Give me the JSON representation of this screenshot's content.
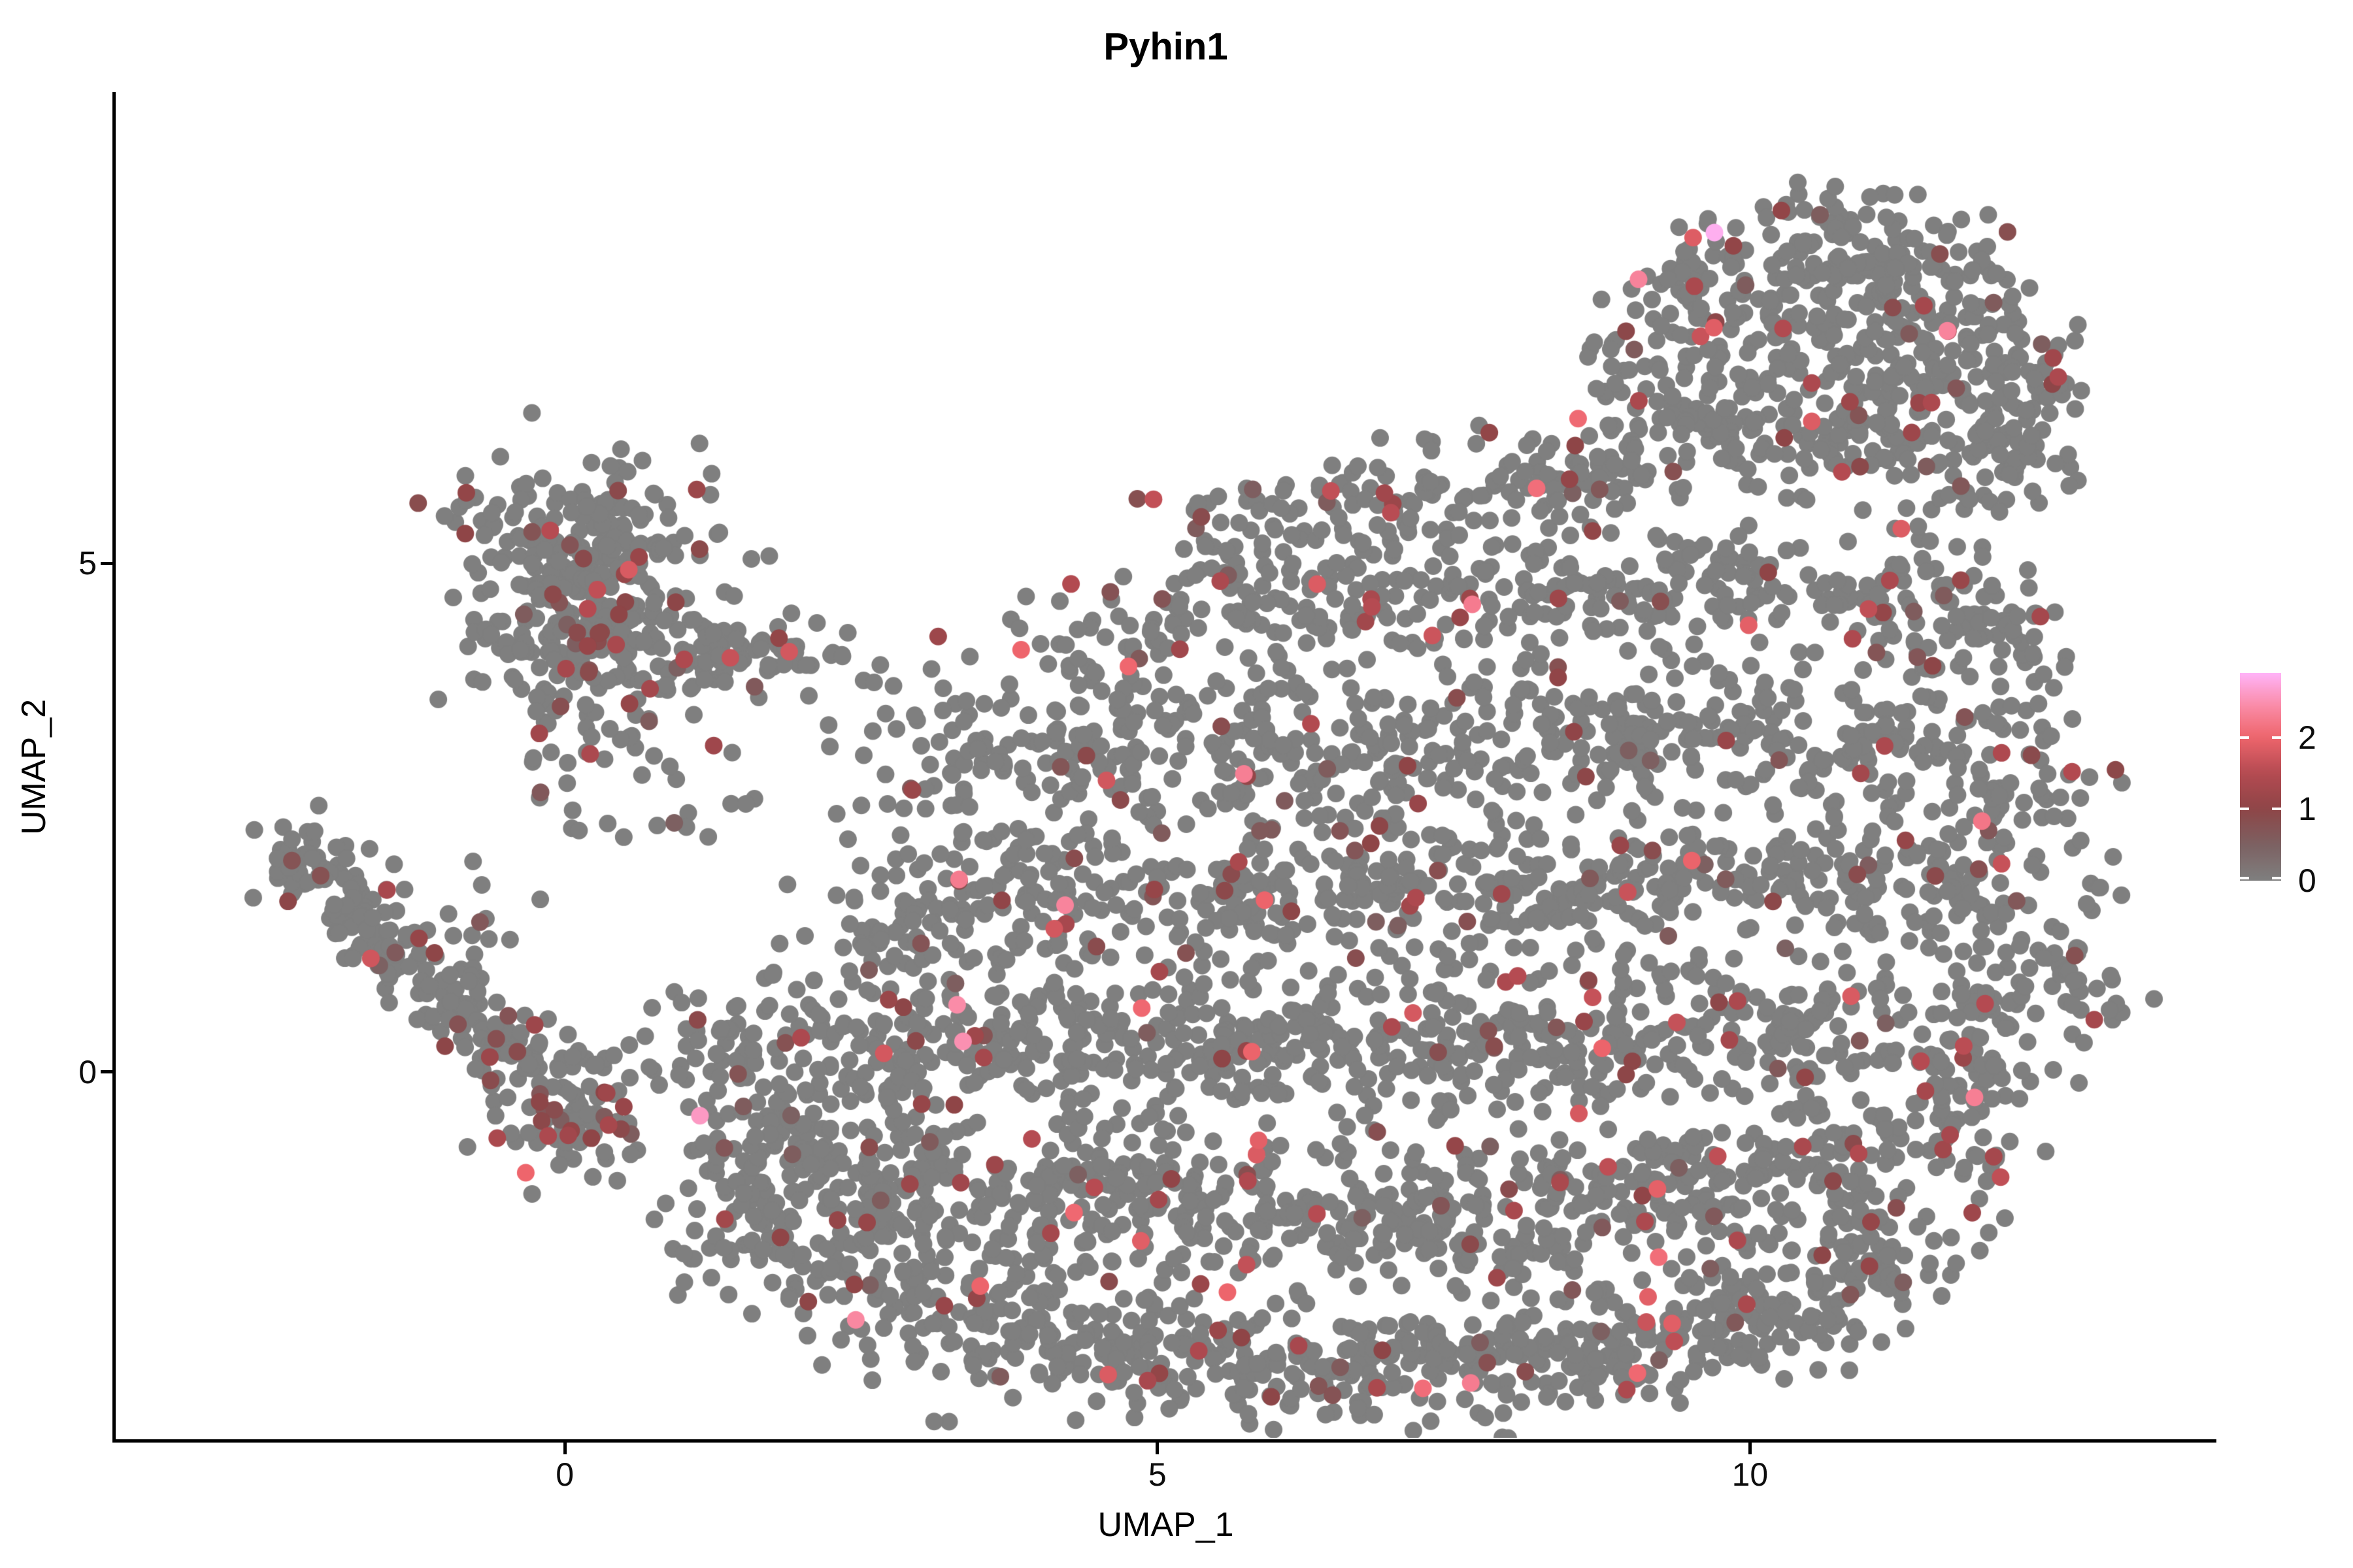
{
  "chart_data": {
    "type": "scatter",
    "title": "Pyhin1",
    "xlabel": "UMAP_1",
    "ylabel": "UMAP_2",
    "xlim": [
      -3.79,
      13.93
    ],
    "ylim": [
      -3.61,
      9.63
    ],
    "x_ticks": [
      0,
      5,
      10
    ],
    "y_ticks": [
      0,
      5
    ],
    "grid": false,
    "legend": {
      "position": "right",
      "ticks": [
        0,
        1,
        2
      ],
      "vmax": 2.9,
      "tick_color": "#ffffff"
    },
    "colors": {
      "expression_0": "#7F7F7F",
      "expression_1": "#8E4547",
      "expression_2": "#EE656C",
      "expression_max": "#FFB3F8",
      "axis": "#000000",
      "background": "#FFFFFF"
    },
    "color_stops": [
      [
        0.0,
        "#7F7F7F"
      ],
      [
        0.5,
        "#7C6162"
      ],
      [
        1.0,
        "#8E4547"
      ],
      [
        1.5,
        "#B44A51"
      ],
      [
        2.0,
        "#EE656C"
      ],
      [
        2.45,
        "#FA8CA8"
      ],
      [
        2.9,
        "#FFB3F8"
      ]
    ],
    "point_radius_px": 13.5,
    "seed": 7,
    "approx_cell_count": 5800,
    "expression_probs": {
      "low": [
        0.055,
        0.5,
        0.9
      ],
      "mid": [
        0.012,
        1.4,
        0.6
      ],
      "high": [
        0.002,
        2.0,
        0.4
      ]
    },
    "clusters": {
      "format": [
        "cx",
        "cy",
        "rx",
        "ry",
        "n",
        "red_boost"
      ],
      "blobs": [
        [
          0.2,
          5.1,
          1.05,
          0.8,
          230,
          1.6
        ],
        [
          0.35,
          4.2,
          1.15,
          0.55,
          130,
          1.6
        ],
        [
          1.7,
          4.05,
          0.8,
          0.4,
          45,
          1.3
        ],
        [
          0.3,
          3.3,
          0.95,
          0.5,
          40,
          1.3
        ],
        [
          0.6,
          2.6,
          1.0,
          0.4,
          14,
          1
        ],
        [
          -2.1,
          2.05,
          0.4,
          0.35,
          48,
          1.4
        ],
        [
          -1.7,
          1.55,
          0.35,
          0.35,
          40,
          1.4
        ],
        [
          -1.35,
          1.1,
          0.33,
          0.33,
          38,
          1.4
        ],
        [
          -0.95,
          0.65,
          0.33,
          0.33,
          38,
          1.4
        ],
        [
          -0.5,
          0.25,
          0.38,
          0.33,
          42,
          1.4
        ],
        [
          -0.9,
          1.5,
          0.8,
          0.8,
          22,
          1
        ],
        [
          0.1,
          -0.35,
          0.6,
          0.6,
          95,
          2.6
        ],
        [
          1.6,
          -1.4,
          0.8,
          0.6,
          70,
          1
        ],
        [
          2.6,
          -2.0,
          0.9,
          0.6,
          88,
          1
        ],
        [
          3.8,
          -2.5,
          0.95,
          0.6,
          98,
          1
        ],
        [
          5.0,
          -2.7,
          0.95,
          0.6,
          98,
          1
        ],
        [
          6.3,
          -2.85,
          0.95,
          0.55,
          98,
          1
        ],
        [
          7.6,
          -2.85,
          0.95,
          0.55,
          98,
          1
        ],
        [
          8.9,
          -2.7,
          0.95,
          0.55,
          98,
          1.3
        ],
        [
          10.1,
          -2.4,
          0.85,
          0.55,
          88,
          1.3
        ],
        [
          11.1,
          -1.9,
          0.7,
          0.5,
          66,
          1
        ],
        [
          1.8,
          -0.6,
          0.8,
          0.6,
          76,
          1.2
        ],
        [
          3.0,
          -1.0,
          0.95,
          0.7,
          105,
          1
        ],
        [
          4.3,
          -1.2,
          0.95,
          0.7,
          105,
          1
        ],
        [
          5.6,
          -1.3,
          0.95,
          0.7,
          105,
          1
        ],
        [
          6.9,
          -1.35,
          0.95,
          0.7,
          105,
          1
        ],
        [
          8.2,
          -1.3,
          0.95,
          0.7,
          105,
          1
        ],
        [
          9.5,
          -1.2,
          0.95,
          0.7,
          105,
          1.2
        ],
        [
          10.7,
          -0.9,
          0.85,
          0.6,
          85,
          1
        ],
        [
          11.7,
          -0.5,
          0.6,
          0.6,
          55,
          1
        ],
        [
          1.5,
          0.2,
          0.75,
          0.6,
          58,
          1.2
        ],
        [
          2.8,
          0.3,
          0.95,
          0.7,
          96,
          1
        ],
        [
          4.1,
          0.3,
          0.95,
          0.7,
          96,
          1
        ],
        [
          5.4,
          0.3,
          0.95,
          0.7,
          96,
          1
        ],
        [
          6.7,
          0.3,
          0.95,
          0.7,
          96,
          1
        ],
        [
          8.0,
          0.3,
          0.95,
          0.7,
          96,
          1
        ],
        [
          9.3,
          0.4,
          0.95,
          0.7,
          96,
          1
        ],
        [
          10.6,
          0.4,
          0.85,
          0.7,
          86,
          1
        ],
        [
          11.9,
          0.5,
          0.7,
          0.7,
          70,
          1
        ],
        [
          12.7,
          1.0,
          0.45,
          0.8,
          38,
          1
        ],
        [
          2.9,
          1.6,
          0.85,
          0.7,
          76,
          1
        ],
        [
          4.2,
          1.8,
          0.95,
          0.7,
          92,
          1
        ],
        [
          5.5,
          1.8,
          0.95,
          0.7,
          92,
          1
        ],
        [
          6.8,
          1.8,
          0.95,
          0.7,
          92,
          1
        ],
        [
          8.1,
          1.8,
          0.95,
          0.7,
          92,
          1
        ],
        [
          9.4,
          1.9,
          0.95,
          0.7,
          92,
          1
        ],
        [
          10.7,
          1.9,
          0.85,
          0.7,
          82,
          1
        ],
        [
          11.9,
          1.9,
          0.7,
          0.7,
          66,
          1
        ],
        [
          3.6,
          3.0,
          0.85,
          0.7,
          66,
          1
        ],
        [
          4.8,
          3.2,
          0.95,
          0.7,
          82,
          1
        ],
        [
          6.1,
          3.2,
          0.95,
          0.7,
          82,
          1
        ],
        [
          7.4,
          3.2,
          0.95,
          0.7,
          82,
          1
        ],
        [
          8.7,
          3.3,
          0.95,
          0.7,
          82,
          1
        ],
        [
          10.0,
          3.3,
          0.95,
          0.7,
          82,
          1
        ],
        [
          11.2,
          3.2,
          0.85,
          0.7,
          76,
          1
        ],
        [
          12.2,
          3.0,
          0.6,
          0.7,
          52,
          1
        ],
        [
          2.9,
          3.7,
          0.85,
          0.8,
          20,
          1
        ],
        [
          4.6,
          4.3,
          0.75,
          0.6,
          52,
          1
        ],
        [
          5.8,
          4.6,
          0.9,
          0.7,
          72,
          1
        ],
        [
          7.1,
          4.7,
          0.9,
          0.7,
          72,
          1
        ],
        [
          8.4,
          4.7,
          0.9,
          0.7,
          72,
          1
        ],
        [
          9.7,
          4.8,
          0.9,
          0.7,
          76,
          1
        ],
        [
          11.0,
          4.7,
          0.9,
          0.7,
          76,
          1
        ],
        [
          12.1,
          4.4,
          0.7,
          0.7,
          58,
          1
        ],
        [
          5.8,
          5.5,
          0.7,
          0.45,
          38,
          1
        ],
        [
          7.0,
          5.7,
          0.8,
          0.5,
          48,
          1
        ],
        [
          8.2,
          5.8,
          0.8,
          0.5,
          52,
          1
        ],
        [
          9.8,
          6.3,
          0.9,
          0.6,
          86,
          1
        ],
        [
          11.1,
          6.3,
          0.9,
          0.6,
          92,
          1
        ],
        [
          12.2,
          6.0,
          0.6,
          0.6,
          56,
          1
        ],
        [
          10.3,
          7.2,
          0.9,
          0.6,
          96,
          1
        ],
        [
          11.5,
          7.2,
          0.8,
          0.6,
          86,
          1
        ],
        [
          12.4,
          6.9,
          0.5,
          0.6,
          44,
          1
        ],
        [
          10.6,
          8.0,
          0.8,
          0.5,
          66,
          1
        ],
        [
          11.6,
          7.9,
          0.6,
          0.5,
          48,
          1
        ],
        [
          10.8,
          8.5,
          0.55,
          0.28,
          20,
          1
        ],
        [
          9.0,
          6.9,
          0.5,
          0.7,
          38,
          1
        ],
        [
          9.5,
          7.8,
          0.5,
          0.5,
          34,
          1
        ],
        [
          8.8,
          5.9,
          0.6,
          0.45,
          24,
          1
        ]
      ]
    },
    "highlight_points": {
      "format": [
        "x",
        "y",
        "expression"
      ],
      "points": [
        [
          9.7,
          8.25,
          2.85
        ],
        [
          9.52,
          8.2,
          1.85
        ],
        [
          9.86,
          8.12,
          1.05
        ],
        [
          9.06,
          7.79,
          2.35
        ],
        [
          3.85,
          4.15,
          2.0
        ],
        [
          3.15,
          4.28,
          1.2
        ],
        [
          5.73,
          2.93,
          2.3
        ],
        [
          3.31,
          0.66,
          2.45
        ],
        [
          3.36,
          0.3,
          2.5
        ],
        [
          1.14,
          -0.43,
          2.6
        ],
        [
          9.23,
          -1.82,
          2.1
        ],
        [
          9.14,
          -2.21,
          1.9
        ],
        [
          7.32,
          4.29,
          1.7
        ],
        [
          11.0,
          4.55,
          1.6
        ],
        [
          -0.33,
          -0.99,
          2.0
        ]
      ]
    }
  }
}
